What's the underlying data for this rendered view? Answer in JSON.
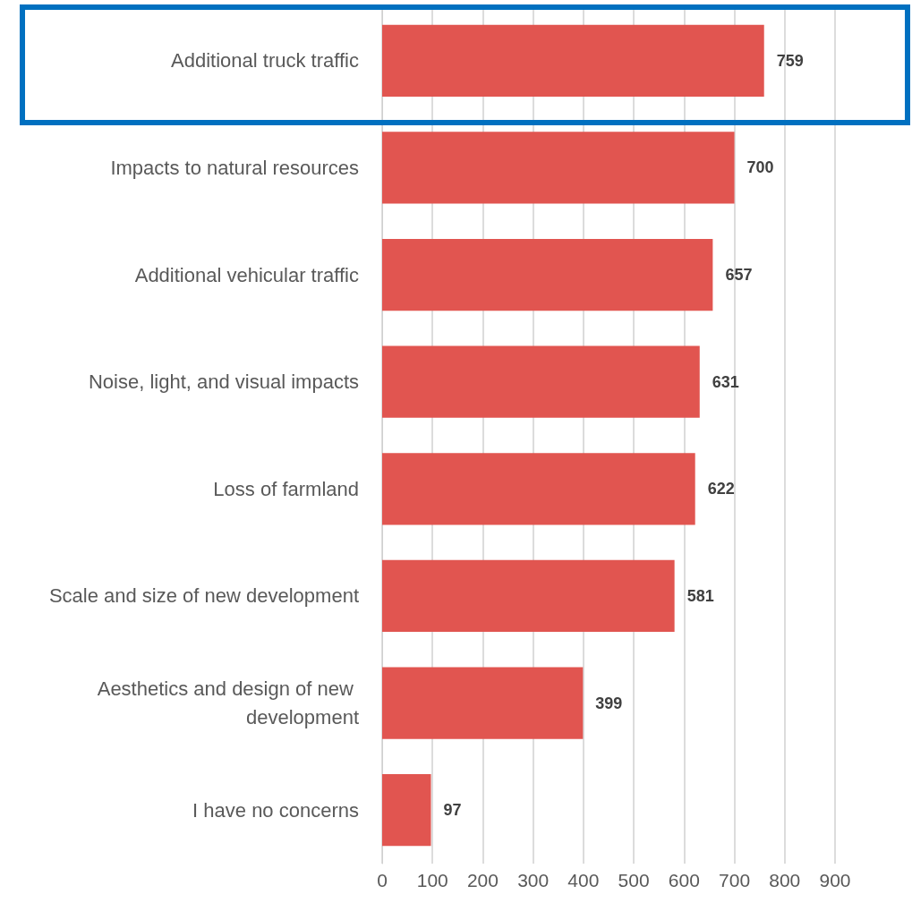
{
  "chart_data": {
    "type": "bar",
    "orientation": "horizontal",
    "categories": [
      "Additional truck traffic",
      "Impacts to natural resources",
      "Additional vehicular traffic",
      "Noise, light, and visual impacts",
      "Loss of farmland",
      "Scale and size of new development",
      "Aesthetics and design of new development",
      "I have no concerns"
    ],
    "values": [
      759,
      700,
      657,
      631,
      622,
      581,
      399,
      97
    ],
    "color": "#e15550",
    "xlim": [
      0,
      900
    ],
    "xticks": [
      0,
      100,
      200,
      300,
      400,
      500,
      600,
      700,
      800,
      900
    ],
    "grid": "x",
    "data_labels": true
  }
}
